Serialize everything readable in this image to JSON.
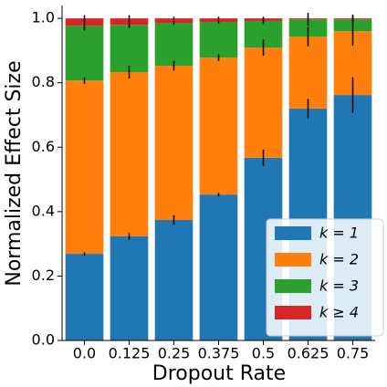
{
  "chart_data": {
    "type": "stacked_bar",
    "xlabel": "Dropout Rate",
    "ylabel": "Normalized Effect Size",
    "categories": [
      "0.0",
      "0.125",
      "0.25",
      "0.375",
      "0.5",
      "0.625",
      "0.75"
    ],
    "series": [
      {
        "name": "k = 1",
        "color": "#1f77b4",
        "values": [
          0.269,
          0.323,
          0.374,
          0.453,
          0.567,
          0.72,
          0.762
        ],
        "errors": [
          0.005,
          0.01,
          0.015,
          0.005,
          0.025,
          0.03,
          0.055
        ]
      },
      {
        "name": "k = 2",
        "color": "#ff7f0e",
        "values": [
          0.538,
          0.51,
          0.479,
          0.425,
          0.342,
          0.223,
          0.198
        ],
        "errors": [
          0.01,
          0.02,
          0.015,
          0.01,
          0.025,
          0.03,
          0.045
        ]
      },
      {
        "name": "k = 3",
        "color": "#2ca02c",
        "values": [
          0.17,
          0.147,
          0.133,
          0.111,
          0.083,
          0.054,
          0.037
        ],
        "errors": [
          0.015,
          0.01,
          0.005,
          0.005,
          0.01,
          0.02,
          0.015
        ]
      },
      {
        "name": "k ≥ 4",
        "color": "#d62728",
        "values": [
          0.023,
          0.02,
          0.014,
          0.011,
          0.008,
          0.003,
          0.003
        ],
        "errors": [
          0.01,
          0.01,
          0.005,
          0.005,
          0.005,
          0.005,
          0.01
        ]
      }
    ],
    "ylim": [
      0,
      1.04
    ],
    "yticks": [
      {
        "value": 0,
        "label": "0.0"
      },
      {
        "value": 0.2,
        "label": "0.2"
      },
      {
        "value": 0.4,
        "label": "0.4"
      },
      {
        "value": 0.6,
        "label": "0.6"
      },
      {
        "value": 0.8,
        "label": "0.8"
      },
      {
        "value": 1.0,
        "label": "1.0"
      }
    ],
    "legend": "lower right"
  }
}
